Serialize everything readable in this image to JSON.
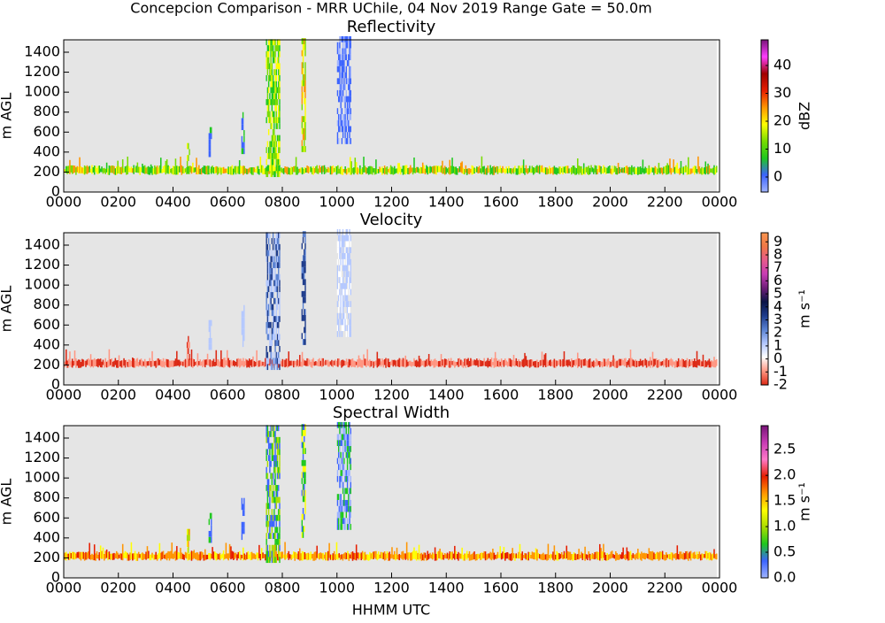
{
  "title": "Concepcion Comparison - MRR UChile, 04 Nov 2019 Range Gate = 50.0m",
  "xlabel": "HHMM UTC",
  "chart_data": [
    {
      "type": "heatmap",
      "title": "Reflectivity",
      "ylabel": "m AGL",
      "xlim": [
        0,
        24
      ],
      "xticks": [
        {
          "value": 0,
          "label": "0000"
        },
        {
          "value": 2,
          "label": "0200"
        },
        {
          "value": 4,
          "label": "0400"
        },
        {
          "value": 6,
          "label": "0600"
        },
        {
          "value": 8,
          "label": "0800"
        },
        {
          "value": 10,
          "label": "1000"
        },
        {
          "value": 12,
          "label": "1200"
        },
        {
          "value": 14,
          "label": "1400"
        },
        {
          "value": 16,
          "label": "1600"
        },
        {
          "value": 18,
          "label": "1800"
        },
        {
          "value": 20,
          "label": "2000"
        },
        {
          "value": 22,
          "label": "2200"
        },
        {
          "value": 24,
          "label": "0000"
        }
      ],
      "ylim": [
        0,
        1524
      ],
      "yticks": [
        0,
        200,
        400,
        600,
        800,
        1000,
        1200,
        1400
      ],
      "colorbar": {
        "label": "dBZ",
        "clim": [
          -5.4,
          49.2
        ],
        "ticks": [
          0,
          10,
          20,
          30,
          40
        ],
        "colors": [
          "#a0b4ff",
          "#3c64ff",
          "#1ec81e",
          "#78dc00",
          "#ffff00",
          "#ff9600",
          "#e61e00",
          "#a00000",
          "#ff3cff",
          "#781478"
        ]
      }
    },
    {
      "type": "heatmap",
      "title": "Velocity",
      "ylabel": "m AGL",
      "xlim": [
        0,
        24
      ],
      "xticks": [
        {
          "value": 0,
          "label": "0000"
        },
        {
          "value": 2,
          "label": "0200"
        },
        {
          "value": 4,
          "label": "0400"
        },
        {
          "value": 6,
          "label": "0600"
        },
        {
          "value": 8,
          "label": "0800"
        },
        {
          "value": 10,
          "label": "1000"
        },
        {
          "value": 12,
          "label": "1200"
        },
        {
          "value": 14,
          "label": "1400"
        },
        {
          "value": 16,
          "label": "1600"
        },
        {
          "value": 18,
          "label": "1800"
        },
        {
          "value": 20,
          "label": "2000"
        },
        {
          "value": 22,
          "label": "2200"
        },
        {
          "value": 24,
          "label": "0000"
        }
      ],
      "ylim": [
        0,
        1524
      ],
      "yticks": [
        0,
        200,
        400,
        600,
        800,
        1000,
        1200,
        1400
      ],
      "colorbar": {
        "label": "m s⁻¹",
        "clim": [
          -2,
          9.7
        ],
        "ticks": [
          -2,
          -1,
          0,
          1,
          2,
          3,
          4,
          5,
          6,
          7,
          8,
          9
        ],
        "colors": [
          "#dc2814",
          "#ff9682",
          "#ffffff",
          "#b4c8ff",
          "#5a82d2",
          "#1e3c8c",
          "#0a1446",
          "#6e1e78",
          "#c83cb4",
          "#e65a8c",
          "#f07846",
          "#fa9650"
        ]
      }
    },
    {
      "type": "heatmap",
      "title": "Spectral Width",
      "ylabel": "m AGL",
      "xlim": [
        0,
        24
      ],
      "xticks": [
        {
          "value": 0,
          "label": "0000"
        },
        {
          "value": 2,
          "label": "0200"
        },
        {
          "value": 4,
          "label": "0400"
        },
        {
          "value": 6,
          "label": "0600"
        },
        {
          "value": 8,
          "label": "0800"
        },
        {
          "value": 10,
          "label": "1000"
        },
        {
          "value": 12,
          "label": "1200"
        },
        {
          "value": 14,
          "label": "1400"
        },
        {
          "value": 16,
          "label": "1600"
        },
        {
          "value": 18,
          "label": "1800"
        },
        {
          "value": 20,
          "label": "2000"
        },
        {
          "value": 22,
          "label": "2200"
        },
        {
          "value": 24,
          "label": "0000"
        }
      ],
      "ylim": [
        0,
        1524
      ],
      "yticks": [
        0,
        200,
        400,
        600,
        800,
        1000,
        1200,
        1400
      ],
      "colorbar": {
        "label": "m s⁻¹",
        "clim": [
          0,
          2.97
        ],
        "ticks": [
          {
            "value": 0,
            "label": "0.0"
          },
          0.5,
          {
            "value": 1,
            "label": "1.0"
          },
          1.5,
          {
            "value": 2,
            "label": "2.0"
          },
          2.5
        ],
        "colors": [
          "#a0b4ff",
          "#3c64ff",
          "#1ec81e",
          "#aadc00",
          "#ffff00",
          "#ff9600",
          "#e61e00",
          "#ff78c8",
          "#c83cb4",
          "#781478"
        ]
      }
    }
  ]
}
